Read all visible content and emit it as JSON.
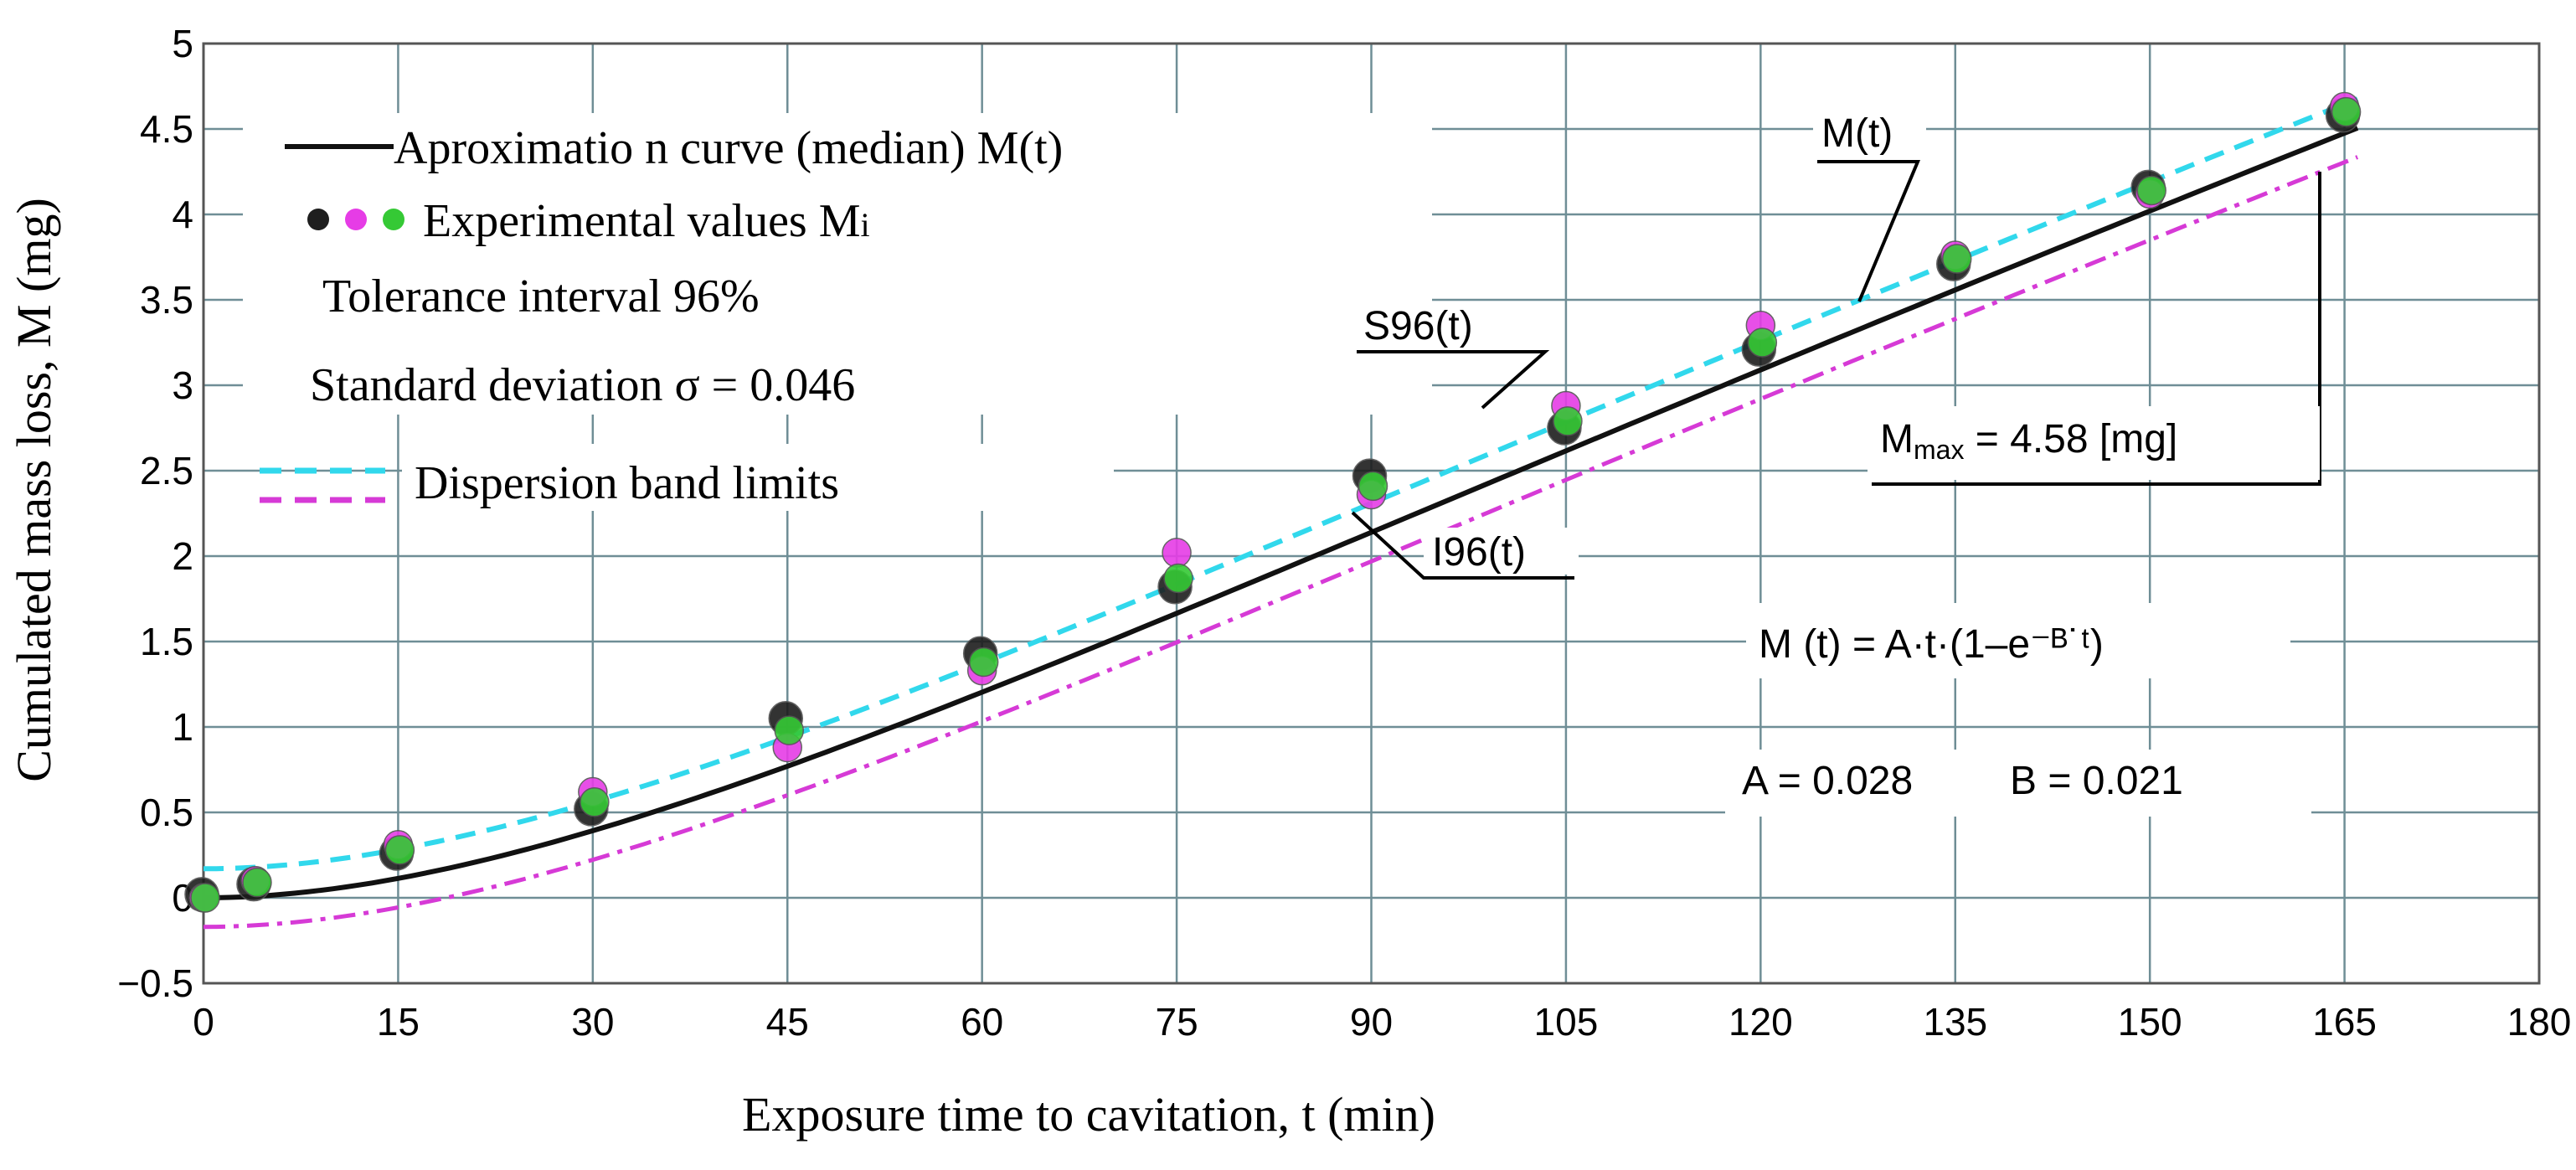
{
  "chart_data": {
    "type": "scatter",
    "title": "",
    "xlabel": "Exposure time  to cavitation, t (min)",
    "ylabel": "Cumulated mass loss, M (mg)",
    "xlim": [
      0,
      180
    ],
    "ylim": [
      -0.5,
      5
    ],
    "grid": true,
    "x_ticks": [
      0,
      15,
      30,
      45,
      60,
      75,
      90,
      105,
      120,
      135,
      150,
      165,
      180
    ],
    "x_tick_labels": [
      "0",
      "15",
      "30",
      "45",
      "60",
      "75",
      "90",
      "105",
      "120",
      "135",
      "150",
      "165",
      "180"
    ],
    "y_ticks": [
      -0.5,
      0,
      0.5,
      1,
      1.5,
      2,
      2.5,
      3,
      3.5,
      4,
      4.5,
      5
    ],
    "y_tick_labels": [
      "−0.5",
      "0",
      "0.5",
      "1",
      "1.5",
      "2",
      "2.5",
      "3",
      "3.5",
      "4",
      "4.5",
      "5"
    ],
    "model": {
      "A": 0.028,
      "B": 0.021
    },
    "band_offset": 0.17,
    "experimental_x": [
      0,
      4,
      15,
      30,
      45,
      60,
      75,
      90,
      105,
      120,
      135,
      150,
      165
    ],
    "series": [
      {
        "name": "Experimental values (black)",
        "color": "#1e1e1e",
        "values": [
          0.02,
          0.08,
          0.26,
          0.52,
          1.05,
          1.43,
          1.82,
          2.47,
          2.75,
          3.21,
          3.71,
          4.16,
          4.58
        ]
      },
      {
        "name": "Experimental values (magenta)",
        "color": "#e63ce6",
        "values": [
          0.0,
          0.1,
          0.31,
          0.62,
          0.88,
          1.33,
          2.02,
          2.36,
          2.88,
          3.35,
          3.76,
          4.12,
          4.63
        ]
      },
      {
        "name": "Experimental values (green)",
        "color": "#35c935",
        "values": [
          0.0,
          0.09,
          0.28,
          0.56,
          0.98,
          1.38,
          1.87,
          2.41,
          2.79,
          3.25,
          3.74,
          4.14,
          4.6
        ]
      }
    ],
    "curves": [
      {
        "name": "M(t)",
        "color": "#111111",
        "style": "solid"
      },
      {
        "name": "S96(t)",
        "color": "#31d8ec",
        "style": "dashed"
      },
      {
        "name": "I96(t)",
        "color": "#d63ad6",
        "style": "dashdot"
      }
    ],
    "legend": {
      "placement": "top-left",
      "entries": [
        {
          "label": "Aproximatio n curve (median) M(t)"
        },
        {
          "label": "Experimental values M",
          "subscript": "i"
        },
        {
          "label": "Tolerance interval 96%"
        },
        {
          "label": "Standard deviation σ = 0.046"
        },
        {
          "label": "Dispersion band limits"
        }
      ]
    },
    "annotations": {
      "mt": "M(t)",
      "s96": "S96(t)",
      "i96": "I96(t)",
      "mmax_prefix": "M",
      "mmax_sub": "max",
      "mmax_value": " = 4.58 [mg]",
      "formula": "M (t) = A·t·(1–e⁻ᴮ˙ᵗ)",
      "params_a": "A = 0.028",
      "params_b": "B = 0.021"
    }
  }
}
